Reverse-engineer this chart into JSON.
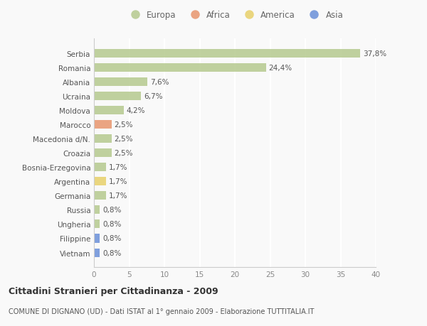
{
  "categories": [
    "Serbia",
    "Romania",
    "Albania",
    "Ucraina",
    "Moldova",
    "Marocco",
    "Macedonia d/N.",
    "Croazia",
    "Bosnia-Erzegovina",
    "Argentina",
    "Germania",
    "Russia",
    "Ungheria",
    "Filippine",
    "Vietnam"
  ],
  "values": [
    37.8,
    24.4,
    7.6,
    6.7,
    4.2,
    2.5,
    2.5,
    2.5,
    1.7,
    1.7,
    1.7,
    0.8,
    0.8,
    0.8,
    0.8
  ],
  "labels": [
    "37,8%",
    "24,4%",
    "7,6%",
    "6,7%",
    "4,2%",
    "2,5%",
    "2,5%",
    "2,5%",
    "1,7%",
    "1,7%",
    "1,7%",
    "0,8%",
    "0,8%",
    "0,8%",
    "0,8%"
  ],
  "continents": [
    "Europa",
    "Europa",
    "Europa",
    "Europa",
    "Europa",
    "Africa",
    "Europa",
    "Europa",
    "Europa",
    "America",
    "Europa",
    "Europa",
    "Europa",
    "Asia",
    "Asia"
  ],
  "continent_colors": {
    "Europa": "#b5c98e",
    "Africa": "#e8956d",
    "America": "#e8d06a",
    "Asia": "#6a8fd8"
  },
  "legend_order": [
    "Europa",
    "Africa",
    "America",
    "Asia"
  ],
  "xlim": [
    0,
    40
  ],
  "xticks": [
    0,
    5,
    10,
    15,
    20,
    25,
    30,
    35,
    40
  ],
  "title": "Cittadini Stranieri per Cittadinanza - 2009",
  "subtitle": "COMUNE DI DIGNANO (UD) - Dati ISTAT al 1° gennaio 2009 - Elaborazione TUTTITALIA.IT",
  "background_color": "#f9f9f9",
  "grid_color": "#ffffff",
  "bar_height": 0.6
}
